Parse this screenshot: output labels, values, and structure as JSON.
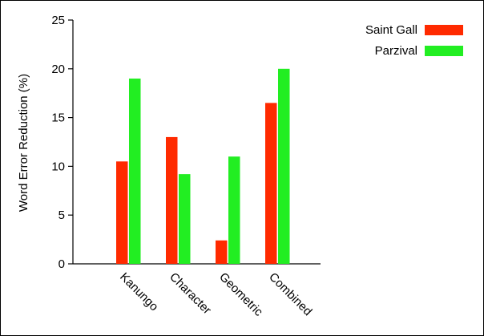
{
  "chart_data": {
    "type": "bar",
    "categories": [
      "Kanungo",
      "Character",
      "Geometric",
      "Combined"
    ],
    "series": [
      {
        "name": "Saint Gall",
        "color": "#ff2a00",
        "values": [
          10.5,
          13.0,
          2.4,
          16.5
        ]
      },
      {
        "name": "Parzival",
        "color": "#22ee22",
        "values": [
          19.0,
          9.2,
          11.0,
          20.0
        ]
      }
    ],
    "ylabel": "Word Error Reduction (%)",
    "xlabel": "",
    "ylim": [
      0,
      25
    ],
    "yticks": [
      0,
      5,
      10,
      15,
      20,
      25
    ],
    "grid": false,
    "legend_position": "top-right"
  }
}
